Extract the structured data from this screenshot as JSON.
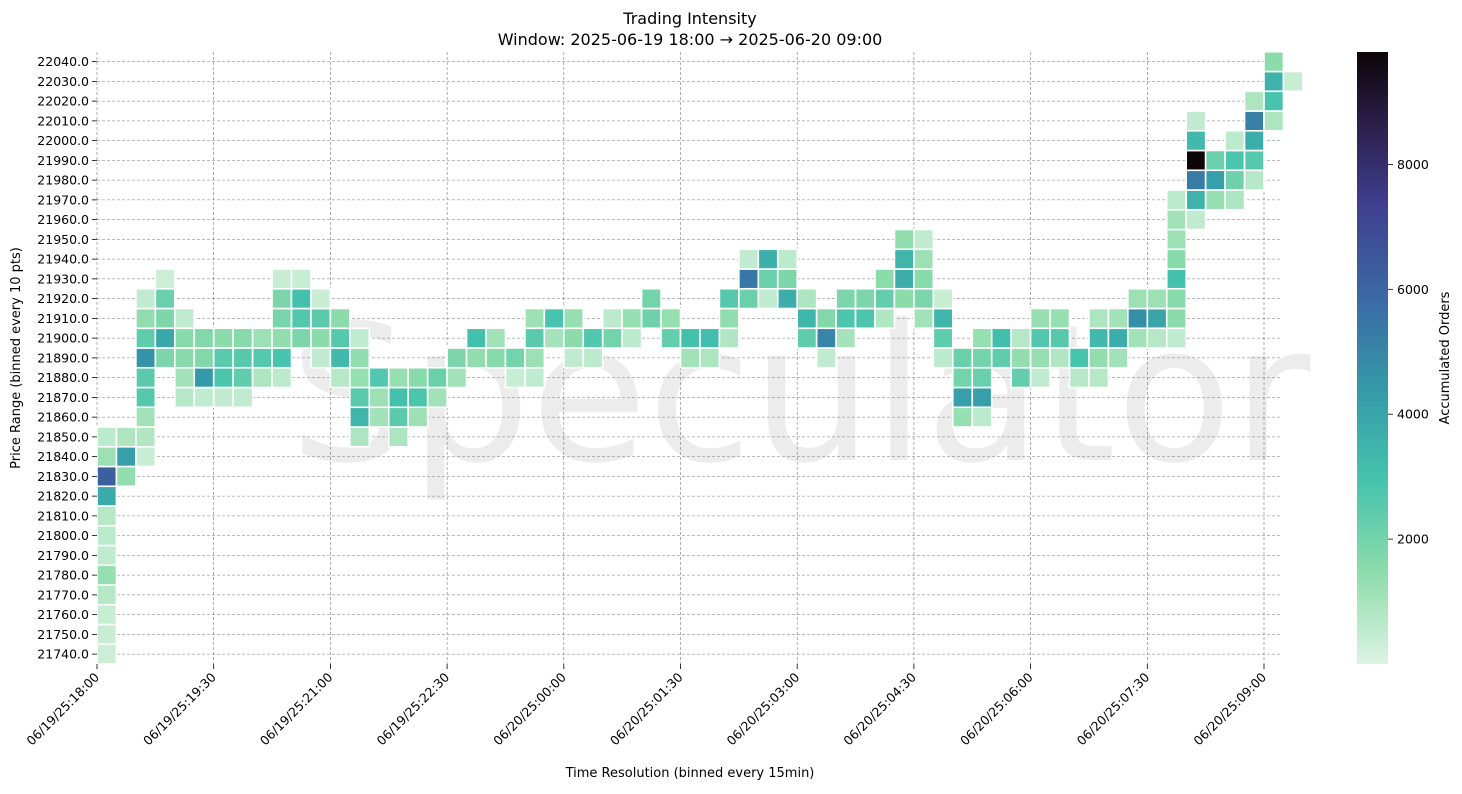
{
  "chart_data": {
    "type": "heatmap",
    "title": "Trading Intensity",
    "subtitle": "Window: 2025-06-19 18:00 → 2025-06-20 09:00",
    "xlabel": "Time Resolution (binned every 15min)",
    "ylabel": "Price Range (binned every 10 pts)",
    "colorbar_label": "Accumulated Orders",
    "colorbar_ticks": [
      "2000",
      "4000",
      "6000",
      "8000"
    ],
    "colorbar_range": [
      0,
      9800
    ],
    "watermark": "Speculator",
    "x_tick_labels": [
      "06/19/25:18:00",
      "06/19/25:19:30",
      "06/19/25:21:00",
      "06/19/25:22:30",
      "06/20/25:00:00",
      "06/20/25:01:30",
      "06/20/25:03:00",
      "06/20/25:04:30",
      "06/20/25:06:00",
      "06/20/25:07:30",
      "06/20/25:09:00"
    ],
    "y_tick_labels": [
      "21740.0",
      "21750.0",
      "21760.0",
      "21770.0",
      "21780.0",
      "21790.0",
      "21800.0",
      "21810.0",
      "21820.0",
      "21830.0",
      "21840.0",
      "21850.0",
      "21860.0",
      "21870.0",
      "21880.0",
      "21890.0",
      "21900.0",
      "21910.0",
      "21920.0",
      "21930.0",
      "21940.0",
      "21950.0",
      "21960.0",
      "21970.0",
      "21980.0",
      "21990.0",
      "22000.0",
      "22010.0",
      "22020.0",
      "22030.0",
      "22040.0"
    ],
    "grid": true,
    "cells": [
      [
        "06/19/25:18:00",
        21740,
        300
      ],
      [
        "06/19/25:18:00",
        21750,
        400
      ],
      [
        "06/19/25:18:00",
        21760,
        400
      ],
      [
        "06/19/25:18:00",
        21770,
        700
      ],
      [
        "06/19/25:18:00",
        21780,
        1300
      ],
      [
        "06/19/25:18:00",
        21790,
        500
      ],
      [
        "06/19/25:18:00",
        21800,
        600
      ],
      [
        "06/19/25:18:00",
        21810,
        700
      ],
      [
        "06/19/25:18:00",
        21820,
        3800
      ],
      [
        "06/19/25:18:00",
        21830,
        6200
      ],
      [
        "06/19/25:18:00",
        21840,
        1200
      ],
      [
        "06/19/25:18:00",
        21850,
        600
      ],
      [
        "06/19/25:18:15",
        21830,
        1400
      ],
      [
        "06/19/25:18:15",
        21840,
        4200
      ],
      [
        "06/19/25:18:15",
        21850,
        900
      ],
      [
        "06/19/25:18:30",
        21840,
        400
      ],
      [
        "06/19/25:18:30",
        21850,
        800
      ],
      [
        "06/19/25:18:30",
        21860,
        1100
      ],
      [
        "06/19/25:18:30",
        21870,
        2600
      ],
      [
        "06/19/25:18:30",
        21880,
        2500
      ],
      [
        "06/19/25:18:30",
        21890,
        4600
      ],
      [
        "06/19/25:18:30",
        21900,
        2400
      ],
      [
        "06/19/25:18:30",
        21910,
        1400
      ],
      [
        "06/19/25:18:30",
        21920,
        500
      ],
      [
        "06/19/25:18:45",
        21890,
        1800
      ],
      [
        "06/19/25:18:45",
        21900,
        3900
      ],
      [
        "06/19/25:18:45",
        21910,
        1800
      ],
      [
        "06/19/25:18:45",
        21920,
        2200
      ],
      [
        "06/19/25:18:45",
        21930,
        300
      ],
      [
        "06/19/25:19:00",
        21870,
        700
      ],
      [
        "06/19/25:19:00",
        21880,
        1100
      ],
      [
        "06/19/25:19:00",
        21890,
        1600
      ],
      [
        "06/19/25:19:00",
        21900,
        1600
      ],
      [
        "06/19/25:19:00",
        21910,
        500
      ],
      [
        "06/19/25:19:15",
        21870,
        500
      ],
      [
        "06/19/25:19:15",
        21880,
        4400
      ],
      [
        "06/19/25:19:15",
        21890,
        1700
      ],
      [
        "06/19/25:19:15",
        21900,
        1700
      ],
      [
        "06/19/25:19:30",
        21870,
        500
      ],
      [
        "06/19/25:19:30",
        21880,
        2800
      ],
      [
        "06/19/25:19:30",
        21890,
        2500
      ],
      [
        "06/19/25:19:30",
        21900,
        1500
      ],
      [
        "06/19/25:19:45",
        21870,
        500
      ],
      [
        "06/19/25:19:45",
        21880,
        2400
      ],
      [
        "06/19/25:19:45",
        21890,
        2600
      ],
      [
        "06/19/25:19:45",
        21900,
        1600
      ],
      [
        "06/19/25:20:00",
        21880,
        900
      ],
      [
        "06/19/25:20:00",
        21890,
        2600
      ],
      [
        "06/19/25:20:00",
        21900,
        1200
      ],
      [
        "06/19/25:20:15",
        21880,
        600
      ],
      [
        "06/19/25:20:15",
        21890,
        2900
      ],
      [
        "06/19/25:20:15",
        21900,
        1400
      ],
      [
        "06/19/25:20:15",
        21910,
        1900
      ],
      [
        "06/19/25:20:15",
        21920,
        1800
      ],
      [
        "06/19/25:20:15",
        21930,
        400
      ],
      [
        "06/19/25:20:30",
        21900,
        1800
      ],
      [
        "06/19/25:20:30",
        21910,
        2700
      ],
      [
        "06/19/25:20:30",
        21920,
        3000
      ],
      [
        "06/19/25:20:30",
        21930,
        400
      ],
      [
        "06/19/25:20:45",
        21890,
        500
      ],
      [
        "06/19/25:20:45",
        21900,
        1500
      ],
      [
        "06/19/25:20:45",
        21910,
        2500
      ],
      [
        "06/19/25:20:45",
        21920,
        400
      ],
      [
        "06/19/25:21:00",
        21880,
        700
      ],
      [
        "06/19/25:21:00",
        21890,
        3300
      ],
      [
        "06/19/25:21:00",
        21900,
        2600
      ],
      [
        "06/19/25:21:00",
        21910,
        1500
      ],
      [
        "06/19/25:21:15",
        21850,
        900
      ],
      [
        "06/19/25:21:15",
        21860,
        3400
      ],
      [
        "06/19/25:21:15",
        21870,
        2500
      ],
      [
        "06/19/25:21:15",
        21880,
        1300
      ],
      [
        "06/19/25:21:15",
        21890,
        1400
      ],
      [
        "06/19/25:21:15",
        21900,
        500
      ],
      [
        "06/19/25:21:30",
        21860,
        1100
      ],
      [
        "06/19/25:21:30",
        21870,
        1200
      ],
      [
        "06/19/25:21:30",
        21880,
        2700
      ],
      [
        "06/19/25:21:45",
        21850,
        900
      ],
      [
        "06/19/25:21:45",
        21860,
        2500
      ],
      [
        "06/19/25:21:45",
        21870,
        3000
      ],
      [
        "06/19/25:21:45",
        21880,
        1300
      ],
      [
        "06/19/25:22:00",
        21860,
        1200
      ],
      [
        "06/19/25:22:00",
        21870,
        2800
      ],
      [
        "06/19/25:22:00",
        21880,
        1600
      ],
      [
        "06/19/25:22:15",
        21870,
        1100
      ],
      [
        "06/19/25:22:15",
        21880,
        2200
      ],
      [
        "06/19/25:22:30",
        21880,
        1100
      ],
      [
        "06/19/25:22:30",
        21890,
        1800
      ],
      [
        "06/19/25:22:45",
        21890,
        1400
      ],
      [
        "06/19/25:22:45",
        21900,
        3000
      ],
      [
        "06/19/25:23:00",
        21890,
        1600
      ],
      [
        "06/19/25:23:00",
        21900,
        1100
      ],
      [
        "06/19/25:23:15",
        21880,
        400
      ],
      [
        "06/19/25:23:15",
        21890,
        2000
      ],
      [
        "06/19/25:23:30",
        21880,
        500
      ],
      [
        "06/19/25:23:30",
        21890,
        1200
      ],
      [
        "06/19/25:23:30",
        21900,
        2500
      ],
      [
        "06/19/25:23:30",
        21910,
        1200
      ],
      [
        "06/19/25:23:45",
        21900,
        1000
      ],
      [
        "06/19/25:23:45",
        21910,
        2900
      ],
      [
        "06/20/25:00:00",
        21890,
        500
      ],
      [
        "06/20/25:00:00",
        21900,
        1500
      ],
      [
        "06/20/25:00:00",
        21910,
        1300
      ],
      [
        "06/20/25:00:15",
        21890,
        600
      ],
      [
        "06/20/25:00:15",
        21900,
        2700
      ],
      [
        "06/20/25:00:30",
        21900,
        2000
      ],
      [
        "06/20/25:00:30",
        21910,
        600
      ],
      [
        "06/20/25:00:45",
        21900,
        600
      ],
      [
        "06/20/25:00:45",
        21910,
        1300
      ],
      [
        "06/20/25:01:00",
        21910,
        2100
      ],
      [
        "06/20/25:01:00",
        21920,
        2000
      ],
      [
        "06/20/25:01:15",
        21900,
        2300
      ],
      [
        "06/20/25:01:15",
        21910,
        1300
      ],
      [
        "06/20/25:01:30",
        21890,
        1100
      ],
      [
        "06/20/25:01:30",
        21900,
        3000
      ],
      [
        "06/20/25:01:45",
        21890,
        900
      ],
      [
        "06/20/25:01:45",
        21900,
        3200
      ],
      [
        "06/20/25:02:00",
        21900,
        800
      ],
      [
        "06/20/25:02:00",
        21910,
        1400
      ],
      [
        "06/20/25:02:00",
        21920,
        2600
      ],
      [
        "06/20/25:02:15",
        21920,
        2200
      ],
      [
        "06/20/25:02:15",
        21930,
        5400
      ],
      [
        "06/20/25:02:15",
        21940,
        500
      ],
      [
        "06/20/25:02:30",
        21920,
        500
      ],
      [
        "06/20/25:02:30",
        21930,
        2200
      ],
      [
        "06/20/25:02:30",
        21940,
        3600
      ],
      [
        "06/20/25:02:45",
        21920,
        3700
      ],
      [
        "06/20/25:02:45",
        21930,
        1800
      ],
      [
        "06/20/25:02:45",
        21940,
        600
      ],
      [
        "06/20/25:03:00",
        21900,
        2400
      ],
      [
        "06/20/25:03:00",
        21910,
        3400
      ],
      [
        "06/20/25:03:00",
        21920,
        900
      ],
      [
        "06/20/25:03:15",
        21890,
        500
      ],
      [
        "06/20/25:03:15",
        21900,
        5000
      ],
      [
        "06/20/25:03:15",
        21910,
        1700
      ],
      [
        "06/20/25:03:30",
        21900,
        1000
      ],
      [
        "06/20/25:03:30",
        21910,
        2800
      ],
      [
        "06/20/25:03:30",
        21920,
        1800
      ],
      [
        "06/20/25:03:45",
        21910,
        2800
      ],
      [
        "06/20/25:03:45",
        21920,
        1800
      ],
      [
        "06/20/25:04:00",
        21910,
        800
      ],
      [
        "06/20/25:04:00",
        21920,
        2300
      ],
      [
        "06/20/25:04:00",
        21930,
        1500
      ],
      [
        "06/20/25:04:15",
        21920,
        1500
      ],
      [
        "06/20/25:04:15",
        21930,
        3700
      ],
      [
        "06/20/25:04:15",
        21940,
        3400
      ],
      [
        "06/20/25:04:15",
        21950,
        1400
      ],
      [
        "06/20/25:04:30",
        21910,
        1100
      ],
      [
        "06/20/25:04:30",
        21920,
        1800
      ],
      [
        "06/20/25:04:30",
        21930,
        1600
      ],
      [
        "06/20/25:04:30",
        21940,
        1200
      ],
      [
        "06/20/25:04:30",
        21950,
        500
      ],
      [
        "06/20/25:04:45",
        21890,
        600
      ],
      [
        "06/20/25:04:45",
        21900,
        2400
      ],
      [
        "06/20/25:04:45",
        21910,
        3400
      ],
      [
        "06/20/25:04:45",
        21920,
        400
      ],
      [
        "06/20/25:05:00",
        21860,
        1300
      ],
      [
        "06/20/25:05:00",
        21870,
        4200
      ],
      [
        "06/20/25:05:00",
        21880,
        2000
      ],
      [
        "06/20/25:05:00",
        21890,
        2200
      ],
      [
        "06/20/25:05:15",
        21860,
        600
      ],
      [
        "06/20/25:05:15",
        21870,
        4200
      ],
      [
        "06/20/25:05:15",
        21880,
        2200
      ],
      [
        "06/20/25:05:15",
        21890,
        2000
      ],
      [
        "06/20/25:05:15",
        21900,
        1300
      ],
      [
        "06/20/25:05:30",
        21890,
        2400
      ],
      [
        "06/20/25:05:30",
        21900,
        3100
      ],
      [
        "06/20/25:05:45",
        21880,
        2300
      ],
      [
        "06/20/25:05:45",
        21890,
        1400
      ],
      [
        "06/20/25:05:45",
        21900,
        700
      ],
      [
        "06/20/25:06:00",
        21880,
        500
      ],
      [
        "06/20/25:06:00",
        21890,
        1300
      ],
      [
        "06/20/25:06:00",
        21900,
        2700
      ],
      [
        "06/20/25:06:00",
        21910,
        1300
      ],
      [
        "06/20/25:06:15",
        21890,
        800
      ],
      [
        "06/20/25:06:15",
        21900,
        2600
      ],
      [
        "06/20/25:06:15",
        21910,
        1300
      ],
      [
        "06/20/25:06:30",
        21880,
        700
      ],
      [
        "06/20/25:06:30",
        21890,
        2900
      ],
      [
        "06/20/25:06:45",
        21880,
        700
      ],
      [
        "06/20/25:06:45",
        21890,
        1400
      ],
      [
        "06/20/25:06:45",
        21900,
        3300
      ],
      [
        "06/20/25:06:45",
        21910,
        900
      ],
      [
        "06/20/25:07:00",
        21890,
        1100
      ],
      [
        "06/20/25:07:00",
        21900,
        3700
      ],
      [
        "06/20/25:07:00",
        21910,
        1100
      ],
      [
        "06/20/25:07:15",
        21900,
        1100
      ],
      [
        "06/20/25:07:15",
        21910,
        4700
      ],
      [
        "06/20/25:07:15",
        21920,
        1200
      ],
      [
        "06/20/25:07:30",
        21900,
        700
      ],
      [
        "06/20/25:07:30",
        21910,
        4000
      ],
      [
        "06/20/25:07:30",
        21920,
        1200
      ],
      [
        "06/20/25:07:45",
        21900,
        500
      ],
      [
        "06/20/25:07:45",
        21910,
        1500
      ],
      [
        "06/20/25:07:45",
        21920,
        1600
      ],
      [
        "06/20/25:07:45",
        21930,
        3000
      ],
      [
        "06/20/25:07:45",
        21940,
        1600
      ],
      [
        "06/20/25:07:45",
        21950,
        1200
      ],
      [
        "06/20/25:07:45",
        21960,
        1100
      ],
      [
        "06/20/25:07:45",
        21970,
        600
      ],
      [
        "06/20/25:08:00",
        21960,
        500
      ],
      [
        "06/20/25:08:00",
        21970,
        3500
      ],
      [
        "06/20/25:08:00",
        21980,
        5300
      ],
      [
        "06/20/25:08:00",
        21990,
        9800
      ],
      [
        "06/20/25:08:00",
        22000,
        3300
      ],
      [
        "06/20/25:08:00",
        22010,
        500
      ],
      [
        "06/20/25:08:15",
        21970,
        1300
      ],
      [
        "06/20/25:08:15",
        21980,
        4200
      ],
      [
        "06/20/25:08:15",
        21990,
        2200
      ],
      [
        "06/20/25:08:30",
        21970,
        900
      ],
      [
        "06/20/25:08:30",
        21980,
        2100
      ],
      [
        "06/20/25:08:30",
        21990,
        2800
      ],
      [
        "06/20/25:08:30",
        22000,
        600
      ],
      [
        "06/20/25:08:45",
        21980,
        700
      ],
      [
        "06/20/25:08:45",
        21990,
        2600
      ],
      [
        "06/20/25:08:45",
        22000,
        3700
      ],
      [
        "06/20/25:08:45",
        22010,
        5200
      ],
      [
        "06/20/25:08:45",
        22020,
        900
      ],
      [
        "06/20/25:09:00",
        22010,
        900
      ],
      [
        "06/20/25:09:00",
        22020,
        2900
      ],
      [
        "06/20/25:09:00",
        22030,
        3500
      ],
      [
        "06/20/25:09:00",
        22040,
        1500
      ],
      [
        "06/20/25:09:15",
        22030,
        400
      ]
    ]
  }
}
